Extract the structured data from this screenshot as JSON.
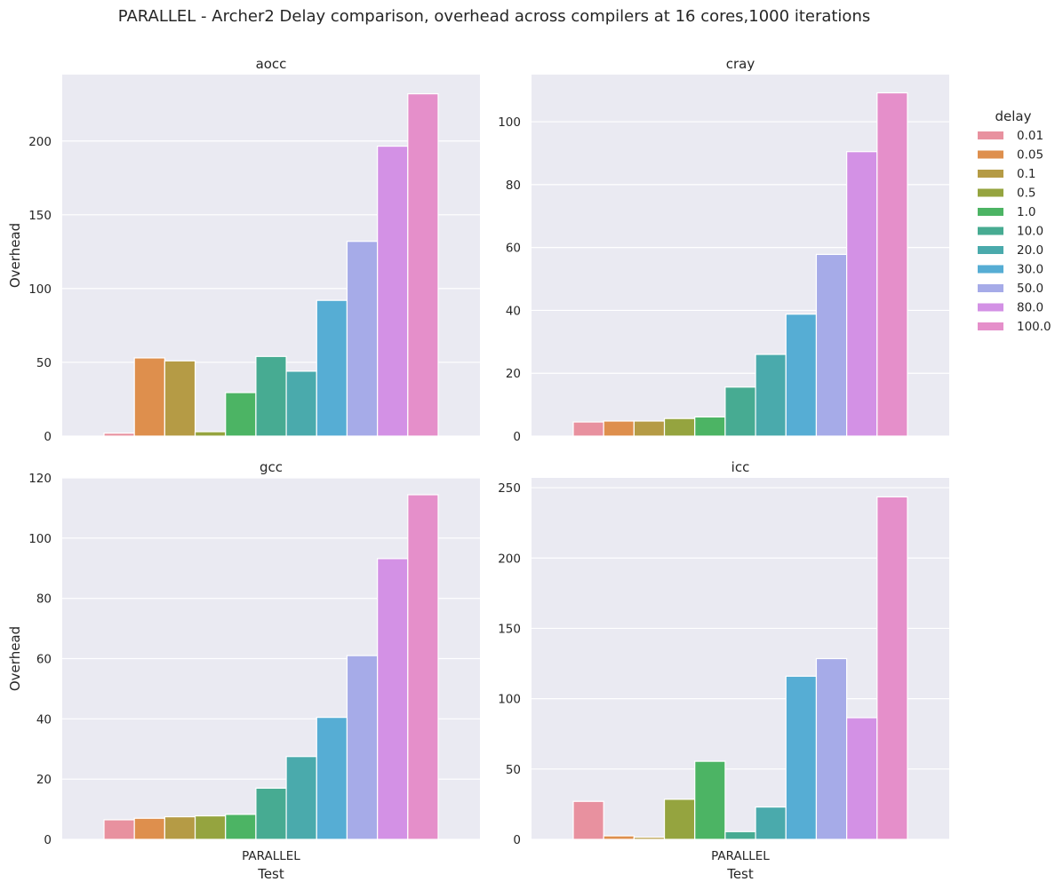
{
  "chart_data": {
    "type": "bar",
    "title": "PARALLEL - Archer2 Delay comparison, overhead across compilers at 16 cores,1000 iterations",
    "xlabel": "Test",
    "ylabel": "Overhead",
    "categories": [
      "PARALLEL"
    ],
    "grid": true,
    "legend": {
      "title": "delay",
      "placement": "right",
      "entries": [
        "0.01",
        "0.05",
        "0.1",
        "0.5",
        "1.0",
        "10.0",
        "20.0",
        "30.0",
        "50.0",
        "80.0",
        "100.0"
      ]
    },
    "colors": [
      "#e8919f",
      "#de8f4d",
      "#b59b45",
      "#95a43f",
      "#4cb464",
      "#47ab92",
      "#4aaaac",
      "#56add4",
      "#a6abe8",
      "#d391e5",
      "#e58fca"
    ],
    "panels": [
      {
        "title": "aocc",
        "ylim": [
          0,
          245
        ],
        "yticks": [
          "0",
          "50",
          "100",
          "150",
          "200"
        ],
        "values": [
          2,
          53,
          51,
          3,
          29.5,
          54,
          44,
          92,
          132,
          196.5,
          232
        ]
      },
      {
        "title": "cray",
        "ylim": [
          0,
          115
        ],
        "yticks": [
          "0",
          "20",
          "40",
          "60",
          "80",
          "100"
        ],
        "values": [
          4.5,
          4.8,
          4.8,
          5.6,
          6.1,
          15.6,
          26,
          38.8,
          57.8,
          90.5,
          109.2
        ]
      },
      {
        "title": "gcc",
        "ylim": [
          0,
          120
        ],
        "yticks": [
          "0",
          "20",
          "40",
          "60",
          "80",
          "100",
          "120"
        ],
        "values": [
          6.5,
          7,
          7.5,
          7.8,
          8.3,
          17,
          27.5,
          40.5,
          61,
          93.2,
          114.4
        ]
      },
      {
        "title": "icc",
        "ylim": [
          0,
          257
        ],
        "yticks": [
          "0",
          "50",
          "100",
          "150",
          "200",
          "250"
        ],
        "values": [
          27,
          2.5,
          1.5,
          28.5,
          55.5,
          5.5,
          23,
          116,
          128.5,
          86.5,
          243.5
        ]
      }
    ]
  }
}
